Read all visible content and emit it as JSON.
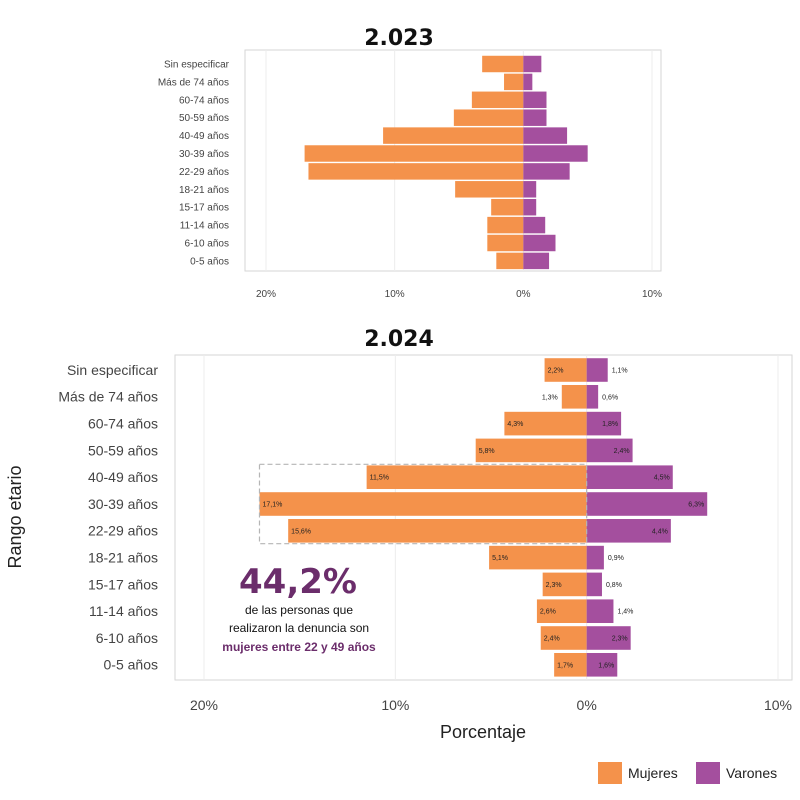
{
  "colors": {
    "mujeres": "#f4924b",
    "varones": "#a44f9e",
    "accent": "#6b2d6b"
  },
  "annotation": {
    "percent": "44,2%",
    "line1": "de las personas que",
    "line2": "realizaron la denuncia son",
    "line3": "mujeres entre 22 y 49 años"
  },
  "legend": [
    {
      "label": "Mujeres",
      "color": "#f4924b"
    },
    {
      "label": "Varones",
      "color": "#a44f9e"
    }
  ],
  "chart_data": [
    {
      "type": "bar",
      "orientation": "horizontal-diverging",
      "title": "2.023",
      "categories": [
        "Sin especificar",
        "Más de 74 años",
        "60-74 años",
        "50-59 años",
        "40-49 años",
        "30-39 años",
        "22-29 años",
        "18-21 años",
        "15-17 años",
        "11-14 años",
        "6-10 años",
        "0-5 años"
      ],
      "series": [
        {
          "name": "Mujeres",
          "values": [
            3.2,
            1.5,
            4.0,
            5.4,
            10.9,
            17.0,
            16.7,
            5.3,
            2.5,
            2.8,
            2.8,
            2.1
          ]
        },
        {
          "name": "Varones",
          "values": [
            1.4,
            0.7,
            1.8,
            1.8,
            3.4,
            5.0,
            3.6,
            1.0,
            1.0,
            1.7,
            2.5,
            2.0
          ]
        }
      ],
      "xticks": [
        "20%",
        "10%",
        "0%",
        "10%"
      ],
      "xlim": [
        -20,
        10
      ],
      "xlabel": "",
      "ylabel": "",
      "grid": true
    },
    {
      "type": "bar",
      "orientation": "horizontal-diverging",
      "title": "2.024",
      "categories": [
        "Sin especificar",
        "Más de 74 años",
        "60-74 años",
        "50-59 años",
        "40-49 años",
        "30-39 años",
        "22-29 años",
        "18-21 años",
        "15-17 años",
        "11-14 años",
        "6-10 años",
        "0-5 años"
      ],
      "series": [
        {
          "name": "Mujeres",
          "values": [
            2.2,
            1.3,
            4.3,
            5.8,
            11.5,
            17.1,
            15.6,
            5.1,
            2.3,
            2.6,
            2.4,
            1.7
          ],
          "labels": [
            "2,2%",
            "1,3%",
            "4,3%",
            "5,8%",
            "11,5%",
            "17,1%",
            "15,6%",
            "5,1%",
            "2,3%",
            "2,6%",
            "2,4%",
            "1,7%"
          ]
        },
        {
          "name": "Varones",
          "values": [
            1.1,
            0.6,
            1.8,
            2.4,
            4.5,
            6.3,
            4.4,
            0.9,
            0.8,
            1.4,
            2.3,
            1.6
          ],
          "labels": [
            "1,1%",
            "0,6%",
            "1,8%",
            "2,4%",
            "4,5%",
            "6,3%",
            "4,4%",
            "0,9%",
            "0,8%",
            "1,4%",
            "2,3%",
            "1,6%"
          ]
        }
      ],
      "xticks": [
        "20%",
        "10%",
        "0%",
        "10%"
      ],
      "xlim": [
        -20,
        10
      ],
      "xlabel": "Porcentaje",
      "ylabel": "Rango etario",
      "grid": true,
      "highlight": [
        "40-49 años",
        "30-39 años",
        "22-29 años"
      ]
    }
  ]
}
